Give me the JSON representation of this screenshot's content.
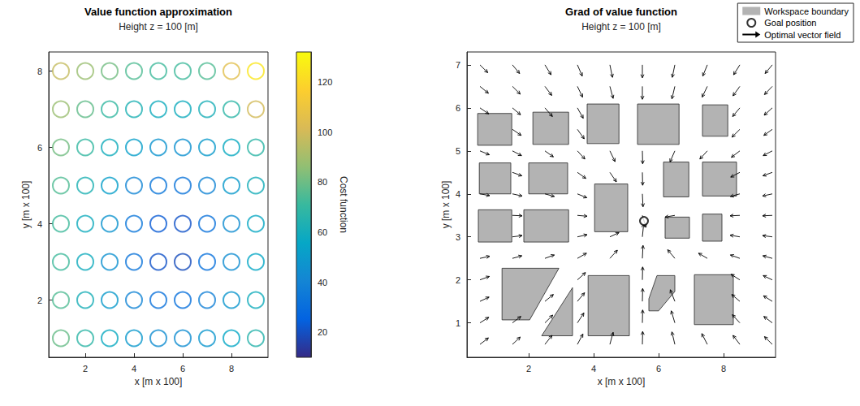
{
  "chart_data": [
    {
      "type": "scatter",
      "title": "Value function approximation",
      "subtitle": "Height z = 100 [m]",
      "x_label": "x [m x 100]",
      "y_label": "y [m x 100]",
      "xlim": [
        0.5,
        9.5
      ],
      "xticks": [
        2,
        4,
        6,
        8
      ],
      "ylim": [
        0.5,
        8.5
      ],
      "yticks": [
        2,
        4,
        6,
        8
      ],
      "marker": "open circle",
      "x": [
        1,
        2,
        3,
        4,
        5,
        6,
        7,
        8,
        9
      ],
      "y": [
        1,
        2,
        3,
        4,
        5,
        6,
        7,
        8
      ],
      "cost": [
        [
          79,
          68,
          58,
          49,
          44,
          44,
          48,
          56,
          66
        ],
        [
          75,
          62,
          50,
          40,
          32,
          31,
          38,
          48,
          60
        ],
        [
          72,
          59,
          46,
          33,
          21,
          19,
          31,
          44,
          56
        ],
        [
          72,
          59,
          47,
          34,
          23,
          21,
          32,
          44,
          57
        ],
        [
          75,
          63,
          52,
          41,
          34,
          33,
          40,
          50,
          61
        ],
        [
          81,
          70,
          60,
          52,
          47,
          46,
          50,
          58,
          68
        ],
        [
          88,
          78,
          70,
          63,
          59,
          59,
          62,
          68,
          100
        ],
        [
          97,
          88,
          81,
          75,
          72,
          72,
          75,
          105,
          125
        ]
      ],
      "colorbar": {
        "label": "Cost function",
        "range": [
          10,
          132
        ],
        "ticks": [
          20,
          40,
          60,
          80,
          100,
          120
        ]
      }
    },
    {
      "type": "quiver",
      "title": "Grad of value function",
      "subtitle": "Height z = 100 [m]",
      "x_label": "x [m x 100]",
      "y_label": "y [m x 100]",
      "xlim": [
        0.1,
        9.6
      ],
      "xticks": [
        2,
        4,
        6,
        8
      ],
      "ylim": [
        0.2,
        7.3
      ],
      "yticks": [
        1,
        2,
        3,
        4,
        5,
        6,
        7
      ],
      "legend": "upper right",
      "obstacles": {
        "name": "Workspace boundary",
        "color": "#b3b3b3",
        "polygons": [
          [
            [
              0.43,
              5.13
            ],
            [
              1.48,
              5.13
            ],
            [
              1.48,
              5.87
            ],
            [
              0.43,
              5.87
            ]
          ],
          [
            [
              2.13,
              5.15
            ],
            [
              3.23,
              5.15
            ],
            [
              3.23,
              5.9
            ],
            [
              2.13,
              5.9
            ]
          ],
          [
            [
              3.8,
              5.17
            ],
            [
              4.78,
              5.17
            ],
            [
              4.78,
              6.09
            ],
            [
              3.8,
              6.09
            ]
          ],
          [
            [
              5.35,
              5.15
            ],
            [
              6.63,
              5.15
            ],
            [
              6.63,
              6.09
            ],
            [
              5.35,
              6.09
            ]
          ],
          [
            [
              7.35,
              5.34
            ],
            [
              8.13,
              5.34
            ],
            [
              8.13,
              6.07
            ],
            [
              7.35,
              6.07
            ]
          ],
          [
            [
              0.48,
              4.0
            ],
            [
              1.45,
              4.0
            ],
            [
              1.45,
              4.72
            ],
            [
              0.48,
              4.72
            ]
          ],
          [
            [
              2.0,
              4.0
            ],
            [
              3.2,
              4.0
            ],
            [
              3.2,
              4.72
            ],
            [
              2.0,
              4.72
            ]
          ],
          [
            [
              6.15,
              3.93
            ],
            [
              6.93,
              3.93
            ],
            [
              6.93,
              4.74
            ],
            [
              6.15,
              4.74
            ]
          ],
          [
            [
              7.35,
              3.95
            ],
            [
              8.4,
              3.95
            ],
            [
              8.4,
              4.74
            ],
            [
              7.35,
              4.74
            ]
          ],
          [
            [
              4.03,
              3.12
            ],
            [
              5.05,
              3.12
            ],
            [
              5.05,
              4.23
            ],
            [
              4.03,
              4.23
            ]
          ],
          [
            [
              0.45,
              2.88
            ],
            [
              1.48,
              2.88
            ],
            [
              1.48,
              3.63
            ],
            [
              0.45,
              3.63
            ]
          ],
          [
            [
              1.85,
              2.88
            ],
            [
              3.23,
              2.88
            ],
            [
              3.23,
              3.63
            ],
            [
              1.85,
              3.63
            ]
          ],
          [
            [
              6.2,
              2.97
            ],
            [
              6.95,
              2.97
            ],
            [
              6.95,
              3.46
            ],
            [
              6.2,
              3.46
            ]
          ],
          [
            [
              7.35,
              2.9
            ],
            [
              7.95,
              2.9
            ],
            [
              7.95,
              3.53
            ],
            [
              7.35,
              3.53
            ]
          ],
          [
            [
              1.18,
              2.27
            ],
            [
              2.93,
              2.27
            ],
            [
              2.03,
              1.07
            ],
            [
              1.18,
              1.07
            ]
          ],
          [
            [
              3.35,
              1.82
            ],
            [
              3.35,
              0.7
            ],
            [
              2.4,
              0.7
            ]
          ],
          [
            [
              3.83,
              0.7
            ],
            [
              5.1,
              0.7
            ],
            [
              5.1,
              2.1
            ],
            [
              3.83,
              2.1
            ]
          ],
          [
            [
              5.95,
              2.1
            ],
            [
              6.5,
              2.1
            ],
            [
              6.5,
              1.73
            ],
            [
              6.0,
              1.28
            ],
            [
              5.7,
              1.28
            ],
            [
              5.7,
              1.56
            ]
          ],
          [
            [
              7.1,
              0.96
            ],
            [
              8.3,
              0.96
            ],
            [
              8.3,
              2.12
            ],
            [
              7.1,
              2.12
            ]
          ]
        ]
      },
      "goal": {
        "name": "Goal position",
        "color": "#000000",
        "marker": "open circle",
        "x": 5.55,
        "y": 3.37
      },
      "vector_field": {
        "name": "Optimal vector field",
        "color": "#000000",
        "arrows": [
          [
            0.5,
            0.5,
            0.26,
            0.15
          ],
          [
            0.5,
            1.0,
            0.27,
            0.13
          ],
          [
            0.5,
            1.5,
            0.28,
            0.1
          ],
          [
            0.5,
            2.0,
            0.29,
            0.08
          ],
          [
            0.5,
            2.5,
            0.3,
            0.05
          ],
          [
            0.5,
            4.0,
            0.3,
            -0.04
          ],
          [
            0.5,
            5.0,
            0.29,
            -0.09
          ],
          [
            0.5,
            6.0,
            0.27,
            -0.14
          ],
          [
            0.5,
            6.5,
            0.26,
            -0.16
          ],
          [
            0.5,
            7.0,
            0.24,
            -0.18
          ],
          [
            1.5,
            0.5,
            0.24,
            0.17
          ],
          [
            1.5,
            1.0,
            0.26,
            0.15
          ],
          [
            1.5,
            2.5,
            0.29,
            0.06
          ],
          [
            1.5,
            3.0,
            0.3,
            0.03
          ],
          [
            1.5,
            3.5,
            0.3,
            -0.01
          ],
          [
            1.5,
            4.0,
            0.3,
            -0.05
          ],
          [
            1.5,
            4.5,
            0.29,
            -0.08
          ],
          [
            1.5,
            5.0,
            0.28,
            -0.11
          ],
          [
            1.5,
            5.5,
            0.27,
            -0.14
          ],
          [
            1.5,
            6.0,
            0.25,
            -0.16
          ],
          [
            1.5,
            6.5,
            0.24,
            -0.18
          ],
          [
            1.5,
            7.0,
            0.22,
            -0.2
          ],
          [
            2.5,
            0.5,
            0.22,
            0.21
          ],
          [
            2.5,
            1.0,
            0.24,
            0.18
          ],
          [
            2.5,
            1.5,
            0.26,
            0.16
          ],
          [
            2.5,
            2.5,
            0.29,
            0.08
          ],
          [
            2.5,
            4.0,
            0.29,
            -0.06
          ],
          [
            2.5,
            5.0,
            0.26,
            -0.14
          ],
          [
            2.5,
            6.0,
            0.23,
            -0.2
          ],
          [
            2.5,
            6.5,
            0.21,
            -0.21
          ],
          [
            2.5,
            7.0,
            0.19,
            -0.23
          ],
          [
            3.5,
            0.5,
            0.17,
            0.24
          ],
          [
            3.5,
            1.0,
            0.2,
            0.23
          ],
          [
            3.5,
            1.5,
            0.22,
            0.2
          ],
          [
            3.5,
            2.0,
            0.25,
            0.17
          ],
          [
            3.5,
            2.5,
            0.28,
            0.12
          ],
          [
            3.5,
            3.0,
            0.3,
            0.05
          ],
          [
            3.5,
            3.5,
            0.3,
            -0.02
          ],
          [
            3.5,
            4.0,
            0.29,
            -0.09
          ],
          [
            3.5,
            4.5,
            0.26,
            -0.14
          ],
          [
            3.5,
            5.0,
            0.23,
            -0.19
          ],
          [
            3.5,
            5.5,
            0.21,
            -0.22
          ],
          [
            3.5,
            6.0,
            0.18,
            -0.24
          ],
          [
            3.5,
            6.5,
            0.16,
            -0.25
          ],
          [
            3.5,
            7.0,
            0.15,
            -0.26
          ],
          [
            4.5,
            0.5,
            0.1,
            0.28
          ],
          [
            4.5,
            2.5,
            0.23,
            0.19
          ],
          [
            4.5,
            3.0,
            0.28,
            0.1
          ],
          [
            4.5,
            4.5,
            0.2,
            -0.22
          ],
          [
            4.5,
            5.0,
            0.16,
            -0.25
          ],
          [
            4.5,
            6.5,
            0.1,
            -0.28
          ],
          [
            4.5,
            7.0,
            0.08,
            -0.29
          ],
          [
            5.5,
            0.5,
            0.01,
            0.3
          ],
          [
            5.5,
            1.0,
            0.01,
            0.3
          ],
          [
            5.5,
            1.5,
            0.01,
            0.3
          ],
          [
            5.5,
            2.0,
            0.01,
            0.3
          ],
          [
            5.5,
            2.5,
            0.02,
            0.3
          ],
          [
            5.5,
            3.0,
            0.04,
            0.3
          ],
          [
            5.5,
            3.5,
            0.11,
            -0.28
          ],
          [
            5.5,
            4.0,
            0.02,
            -0.3
          ],
          [
            5.5,
            4.5,
            0.01,
            -0.3
          ],
          [
            5.5,
            5.0,
            0.01,
            -0.3
          ],
          [
            5.5,
            6.5,
            0.0,
            -0.3
          ],
          [
            5.5,
            7.0,
            0.0,
            -0.3
          ],
          [
            6.5,
            0.5,
            -0.09,
            0.29
          ],
          [
            6.5,
            1.0,
            -0.11,
            0.28
          ],
          [
            6.5,
            1.5,
            -0.14,
            0.27
          ],
          [
            6.5,
            2.5,
            -0.22,
            0.2
          ],
          [
            6.5,
            3.5,
            -0.3,
            -0.04
          ],
          [
            6.5,
            5.0,
            -0.15,
            -0.26
          ],
          [
            6.5,
            6.5,
            -0.09,
            -0.29
          ],
          [
            6.5,
            7.0,
            -0.08,
            -0.29
          ],
          [
            7.5,
            0.5,
            -0.17,
            0.25
          ],
          [
            7.5,
            2.5,
            -0.27,
            0.12
          ],
          [
            7.5,
            5.0,
            -0.23,
            -0.19
          ],
          [
            7.5,
            6.5,
            -0.16,
            -0.25
          ],
          [
            7.5,
            7.0,
            -0.14,
            -0.26
          ],
          [
            8.5,
            0.5,
            -0.21,
            0.21
          ],
          [
            8.5,
            1.0,
            -0.23,
            0.19
          ],
          [
            8.5,
            1.5,
            -0.25,
            0.16
          ],
          [
            8.5,
            2.0,
            -0.27,
            0.13
          ],
          [
            8.5,
            2.5,
            -0.29,
            0.08
          ],
          [
            8.5,
            3.0,
            -0.3,
            0.04
          ],
          [
            8.5,
            3.5,
            -0.3,
            -0.01
          ],
          [
            8.5,
            4.0,
            -0.29,
            -0.06
          ],
          [
            8.5,
            4.5,
            -0.28,
            -0.11
          ],
          [
            8.5,
            5.0,
            -0.26,
            -0.15
          ],
          [
            8.5,
            5.5,
            -0.24,
            -0.18
          ],
          [
            8.5,
            6.0,
            -0.22,
            -0.2
          ],
          [
            8.5,
            6.5,
            -0.21,
            -0.22
          ],
          [
            8.5,
            7.0,
            -0.19,
            -0.23
          ],
          [
            9.5,
            0.5,
            -0.24,
            0.18
          ],
          [
            9.5,
            1.0,
            -0.26,
            0.15
          ],
          [
            9.5,
            1.5,
            -0.27,
            0.13
          ],
          [
            9.5,
            2.0,
            -0.28,
            0.1
          ],
          [
            9.5,
            2.5,
            -0.29,
            0.06
          ],
          [
            9.5,
            3.0,
            -0.3,
            0.03
          ],
          [
            9.5,
            3.5,
            -0.3,
            -0.01
          ],
          [
            9.5,
            4.0,
            -0.3,
            -0.05
          ],
          [
            9.5,
            4.5,
            -0.29,
            -0.08
          ],
          [
            9.5,
            5.0,
            -0.28,
            -0.11
          ],
          [
            9.5,
            5.5,
            -0.26,
            -0.14
          ],
          [
            9.5,
            6.0,
            -0.25,
            -0.17
          ],
          [
            9.5,
            6.5,
            -0.24,
            -0.19
          ],
          [
            9.5,
            7.0,
            -0.22,
            -0.2
          ]
        ]
      }
    }
  ]
}
